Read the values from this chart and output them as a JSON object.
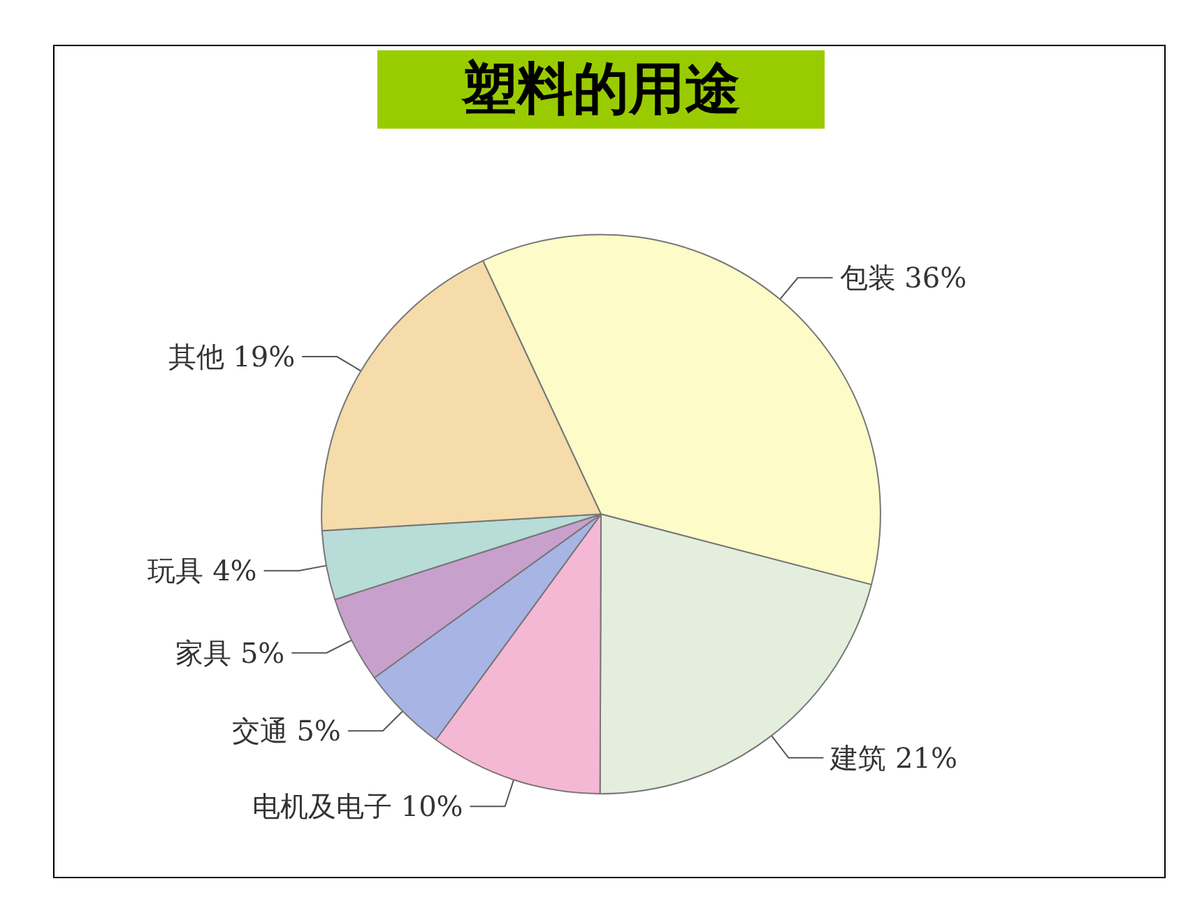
{
  "chart_data": {
    "type": "pie",
    "title": "塑料的用途",
    "categories": [
      "包装",
      "建筑",
      "电机及电子",
      "交通",
      "家具",
      "玩具",
      "其他"
    ],
    "values": [
      36,
      21,
      10,
      5,
      5,
      4,
      19
    ],
    "value_labels": [
      "36%",
      "21%",
      "10%",
      "5%",
      "5%",
      "4%",
      "19%"
    ],
    "colors": [
      "#fdfbc8",
      "#e3efdc",
      "#f5b8d4",
      "#a8b4e4",
      "#c8a0cc",
      "#b8dcd8",
      "#f5dcaa"
    ],
    "legend": false
  }
}
